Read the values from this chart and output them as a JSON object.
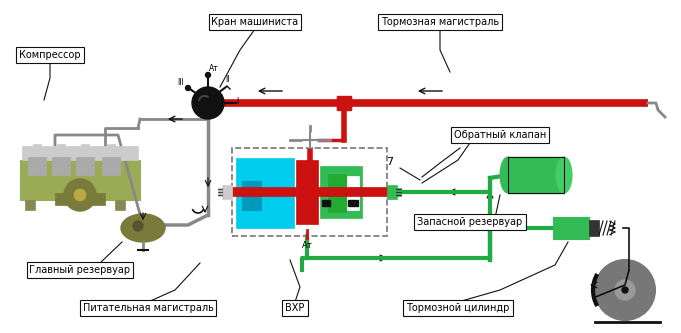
{
  "labels": {
    "compressor": "Компрессор",
    "main_reservoir": "Главный резервуар",
    "feed_line": "Питательная магистраль",
    "brake_valve": "Кран машиниста",
    "brake_line": "Тормозная магистраль",
    "check_valve": "Обратный клапан",
    "spare_reservoir": "Запасной резервуар",
    "brake_cylinder": "Тормозной цилиндр",
    "vxr": "ВХР",
    "num7": "7",
    "at": "Ат",
    "pos1": "I",
    "pos2": "II",
    "pos3": "III"
  },
  "colors": {
    "red": "#cc1111",
    "green": "#22aa44",
    "green_fill": "#33bb55",
    "green_light": "#44cc66",
    "cyan": "#00ccee",
    "olive": "#7a7a3a",
    "olive_light": "#9aaa55",
    "black": "#111111",
    "gray": "#888888",
    "gray_light": "#cccccc",
    "white": "#ffffff",
    "dark_green_res": "#22bb44"
  }
}
